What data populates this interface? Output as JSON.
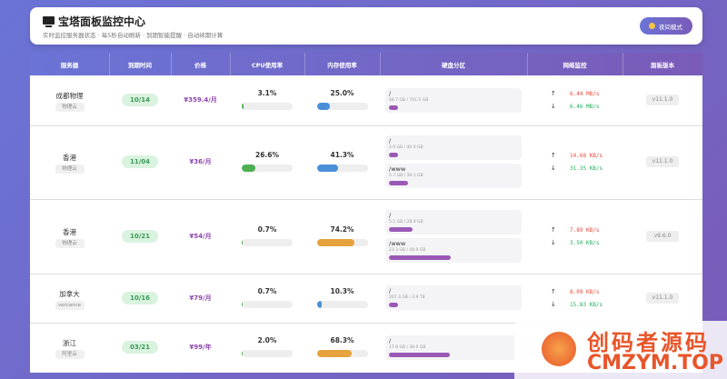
{
  "header": {
    "title": "宝塔面板监控中心",
    "subtitle": "实时监控服务器状态 · 每5秒自动刷新 · 到期智能提醒 · 自动续期计算",
    "button": "夜间模式"
  },
  "table": {
    "columns": [
      "服务器",
      "到期时间",
      "价格",
      "CPU使用率",
      "内存使用率",
      "硬盘分区",
      "网络监控",
      "面板版本"
    ],
    "up_symbol": "↑",
    "down_symbol": "↓",
    "rows": [
      {
        "name": "成都物理",
        "provider": "物理云",
        "expiry": "10/14",
        "price": "¥359.4/月",
        "cpu": {
          "value": 3.1,
          "label": "3.1%",
          "color": "#4caf50"
        },
        "memory": {
          "value": 25.0,
          "label": "25.0%",
          "color": "#4a90d9"
        },
        "disks": [
          {
            "mount": "/",
            "usage": "48.7 GB / 701.5 GB",
            "percent": 7
          }
        ],
        "upload": "6.44 MB/s",
        "download": "6.46 MB/s",
        "version": "v11.1.0"
      },
      {
        "name": "香港",
        "provider": "物理云",
        "expiry": "11/04",
        "price": "¥36/月",
        "cpu": {
          "value": 26.6,
          "label": "26.6%",
          "color": "#4caf50"
        },
        "memory": {
          "value": 41.3,
          "label": "41.3%",
          "color": "#4a90d9"
        },
        "disks": [
          {
            "mount": "/",
            "usage": "2.9 GB / 40.0 GB",
            "percent": 7
          },
          {
            "mount": "/www",
            "usage": "5.7 GB / 39.1 GB",
            "percent": 15
          }
        ],
        "upload": "14.68 KB/s",
        "download": "31.35 KB/s",
        "version": "v11.1.0"
      },
      {
        "name": "香港",
        "provider": "物理云",
        "expiry": "10/21",
        "price": "¥54/月",
        "cpu": {
          "value": 0.7,
          "label": "0.7%",
          "color": "#4caf50"
        },
        "memory": {
          "value": 74.2,
          "label": "74.2%",
          "color": "#e6a23c"
        },
        "disks": [
          {
            "mount": "/",
            "usage": "5.1 GB / 28.9 GB",
            "percent": 18
          },
          {
            "mount": "/www",
            "usage": "23.3 GB / 48.9 GB",
            "percent": 48
          }
        ],
        "upload": "7.89 KB/s",
        "download": "3.50 KB/s",
        "version": "v9.6.0"
      },
      {
        "name": "加拿大",
        "provider": "vercance",
        "expiry": "10/16",
        "price": "¥79/月",
        "cpu": {
          "value": 0.7,
          "label": "0.7%",
          "color": "#4caf50"
        },
        "memory": {
          "value": 10.3,
          "label": "10.3%",
          "color": "#4a90d9"
        },
        "disks": [
          {
            "mount": "/",
            "usage": "267.3 GB / 3.9 TB",
            "percent": 7
          }
        ],
        "upload": "8.09 KB/s",
        "download": "15.83 KB/s",
        "version": "v11.1.0"
      },
      {
        "name": "浙江",
        "provider": "阿里云",
        "expiry": "03/21",
        "price": "¥99/年",
        "cpu": {
          "value": 2.0,
          "label": "2.0%",
          "color": "#4caf50"
        },
        "memory": {
          "value": 68.3,
          "label": "68.3%",
          "color": "#e6a23c"
        },
        "disks": [
          {
            "mount": "/",
            "usage": "17.8 GB / 38.0 GB",
            "percent": 47
          }
        ]
      }
    ]
  },
  "watermark": {
    "line1": "创码者源码",
    "line2": "CMZYM.TOP"
  }
}
